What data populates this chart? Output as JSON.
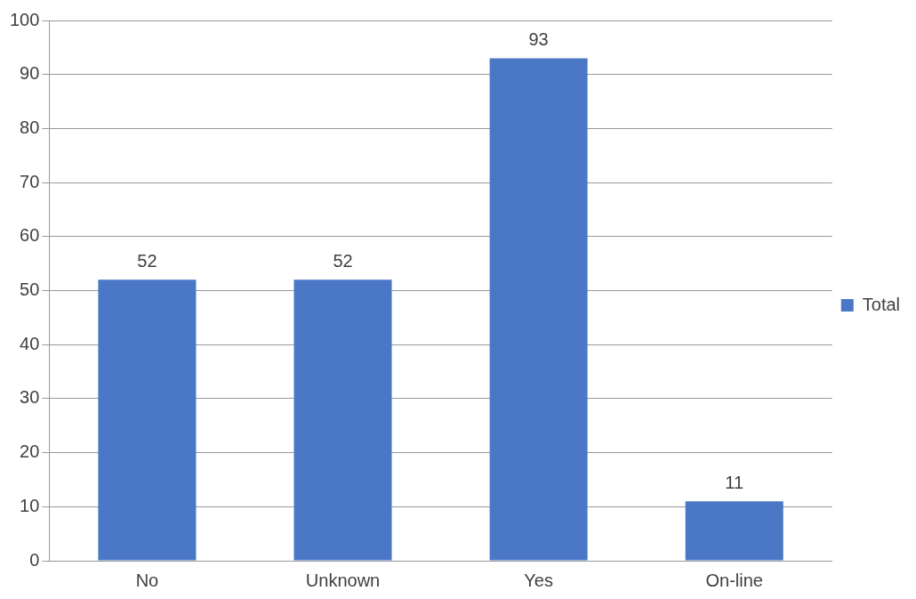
{
  "chart_data": {
    "type": "bar",
    "categories": [
      "No",
      "Unknown",
      "Yes",
      "On-line"
    ],
    "series": [
      {
        "name": "Total",
        "color": "#4a78c6",
        "values": [
          52,
          52,
          93,
          11
        ]
      }
    ],
    "ylim": [
      0,
      100
    ],
    "yticks": [
      0,
      10,
      20,
      30,
      40,
      50,
      60,
      70,
      80,
      90,
      100
    ],
    "grid": "y",
    "legend": "right",
    "data_labels": true
  }
}
